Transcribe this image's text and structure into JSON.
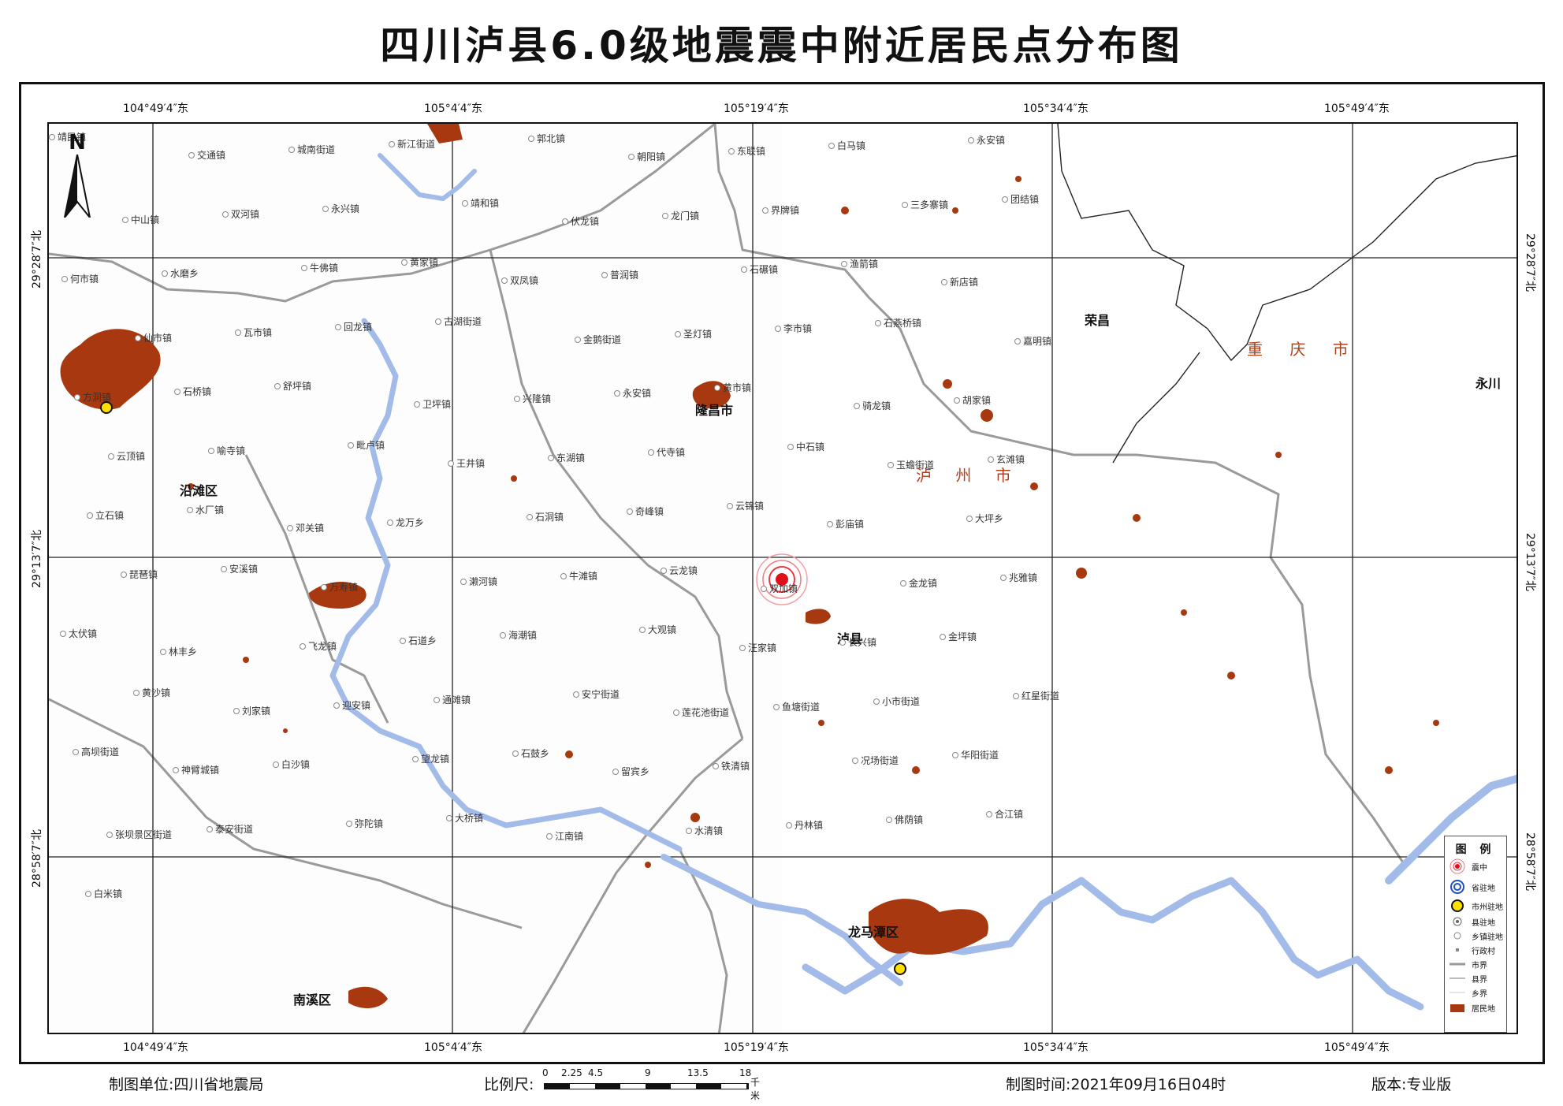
{
  "title": "四川泸县6.0级地震震中附近居民点分布图",
  "coords": {
    "longitudes": [
      "104°49′4″东",
      "105°4′4″东",
      "105°19′4″东",
      "105°34′4″东",
      "105°49′4″东"
    ],
    "latitudes": [
      "29°28′7″北",
      "29°13′7″北",
      "28°58′7″北"
    ]
  },
  "north_label": "N",
  "legend": {
    "title": "图 例",
    "items": [
      {
        "label": "震中",
        "icon": "epicenter-icon"
      },
      {
        "label": "省驻地",
        "icon": "province-seat-icon"
      },
      {
        "label": "市州驻地",
        "icon": "city-seat-icon"
      },
      {
        "label": "县驻地",
        "icon": "county-seat-icon"
      },
      {
        "label": "乡镇驻地",
        "icon": "township-seat-icon"
      },
      {
        "label": "行政村",
        "icon": "village-icon"
      },
      {
        "label": "市界",
        "icon": "city-boundary-icon"
      },
      {
        "label": "县界",
        "icon": "county-boundary-icon"
      },
      {
        "label": "乡界",
        "icon": "township-boundary-icon"
      },
      {
        "label": "居民地",
        "icon": "settlement-icon"
      }
    ]
  },
  "colors": {
    "settlement": "#a8380f",
    "river": "#9db6e6",
    "epicenter": "#e0101a",
    "boundary": "#888888"
  },
  "map_labels": {
    "luzhou": "泸 州 市",
    "chongqing": "重 庆 市",
    "rongchang": "荣昌",
    "yongchuan": "永川",
    "luxian": "泸县",
    "yanhu": "沿滩区",
    "longmatan": "龙马潭区",
    "nanxi": "南溪区",
    "longchang": "隆昌市",
    "towns": [
      "靖民镇",
      "交通镇",
      "城南街道",
      "新江街道",
      "郭北镇",
      "朝阳镇",
      "东联镇",
      "白马镇",
      "永安镇",
      "中山镇",
      "双河镇",
      "永兴镇",
      "靖和镇",
      "伏龙镇",
      "龙门镇",
      "界牌镇",
      "三多寨镇",
      "团结镇",
      "何市镇",
      "水磨乡",
      "牛佛镇",
      "黄家镇",
      "双凤镇",
      "普润镇",
      "石碾镇",
      "渔箭镇",
      "新店镇",
      "仙市镇",
      "瓦市镇",
      "回龙镇",
      "古湖街道",
      "金鹅街道",
      "圣灯镇",
      "李市镇",
      "石燕桥镇",
      "嘉明镇",
      "方洞镇",
      "石桥镇",
      "舒坪镇",
      "卫坪镇",
      "兴隆镇",
      "永安镇",
      "黄市镇",
      "骑龙镇",
      "胡家镇",
      "云顶镇",
      "喻寺镇",
      "毗卢镇",
      "王井镇",
      "东湖镇",
      "代寺镇",
      "中石镇",
      "玉蟾街道",
      "玄滩镇",
      "立石镇",
      "水厂镇",
      "邓关镇",
      "龙万乡",
      "石洞镇",
      "奇峰镇",
      "云锦镇",
      "彭庙镇",
      "大坪乡",
      "琵琶镇",
      "安溪镇",
      "万寿镇",
      "濑河镇",
      "牛滩镇",
      "云龙镇",
      "双加镇",
      "金龙镇",
      "兆雅镇",
      "太伏镇",
      "林丰乡",
      "飞龙镇",
      "石道乡",
      "海潮镇",
      "大观镇",
      "汪家镇",
      "长兴镇",
      "金坪镇",
      "黄沙镇",
      "刘家镇",
      "迎安镇",
      "通滩镇",
      "安宁街道",
      "莲花池街道",
      "鱼塘街道",
      "小市街道",
      "红星街道",
      "高坝街道",
      "神臂城镇",
      "白沙镇",
      "望龙镇",
      "石鼓乡",
      "留宾乡",
      "铁清镇",
      "况场街道",
      "华阳街道",
      "张坝景区街道",
      "泰安街道",
      "弥陀镇",
      "大桥镇",
      "江南镇",
      "水清镇",
      "丹林镇",
      "佛荫镇",
      "合江镇",
      "白米镇"
    ]
  },
  "footer": {
    "unit_label": "制图单位:四川省地震局",
    "scale_label": "比例尺:",
    "scale_ticks": [
      "0",
      "2.25",
      "4.5",
      "9",
      "13.5",
      "18"
    ],
    "scale_unit": "千米",
    "time_label": "制图时间:2021年09月16日04时",
    "edition_label": "版本:专业版"
  }
}
